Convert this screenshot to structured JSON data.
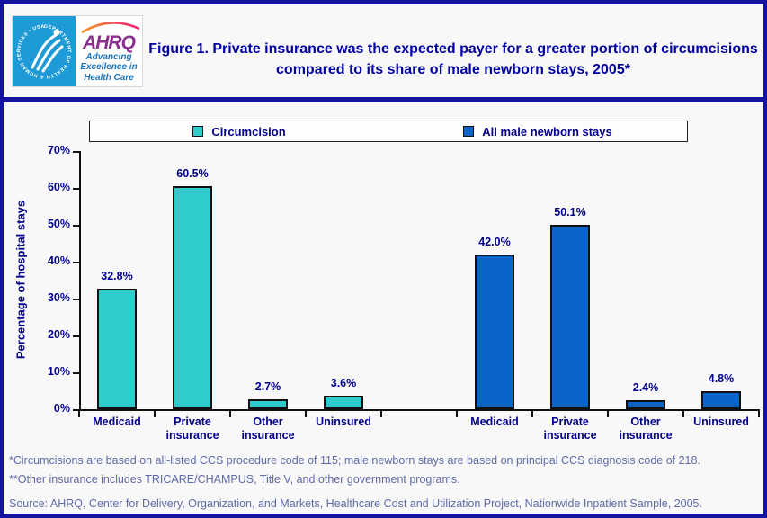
{
  "header": {
    "title": "Figure 1. Private insurance was the expected payer for a greater portion of circumcisions compared to its share of male newborn stays, 2005*",
    "logo": {
      "brand": "AHRQ",
      "tagline": "Advancing\nExcellence in\nHealth Care",
      "seal_text": "DEPARTMENT OF HEALTH & HUMAN SERVICES • USA"
    }
  },
  "chart_data": {
    "type": "bar",
    "title": "",
    "xlabel": "",
    "ylabel": "Percentage of hospital stays",
    "ylim": [
      0,
      70
    ],
    "yticks": [
      0,
      10,
      20,
      30,
      40,
      50,
      60,
      70
    ],
    "ytick_labels": [
      "0%",
      "10%",
      "20%",
      "30%",
      "40%",
      "50%",
      "60%",
      "70%"
    ],
    "categories": [
      "Medicaid",
      "Private insurance",
      "Other insurance",
      "Uninsured"
    ],
    "categories_display": [
      "Medicaid",
      "Private\ninsurance",
      "Other\ninsurance",
      "Uninsured"
    ],
    "series": [
      {
        "name": "Circumcision",
        "color": "#30CBCB",
        "values": [
          32.8,
          60.5,
          2.7,
          3.6
        ],
        "labels": [
          "32.8%",
          "60.5%",
          "2.7%",
          "3.6%"
        ]
      },
      {
        "name": "All male newborn stays",
        "color": "#0A64CA",
        "values": [
          42.0,
          50.1,
          2.4,
          4.8
        ],
        "labels": [
          "42.0%",
          "50.1%",
          "2.4%",
          "4.8%"
        ]
      }
    ],
    "legend_position": "top",
    "grid": false
  },
  "footnotes": [
    "*Circumcisions are based on all-listed CCS procedure code of 115; male newborn stays are based on principal CCS diagnosis code of 218.",
    "**Other insurance includes TRICARE/CHAMPUS, Title V, and other government programs."
  ],
  "source": "Source: AHRQ, Center for Delivery, Organization, and Markets, Healthcare Cost and Utilization Project, Nationwide Inpatient Sample, 2005.",
  "colors": {
    "accent_teal": "#30CBCB",
    "accent_blue": "#0A64CA",
    "navy_text": "#00008B",
    "frame_navy": "#1414A0",
    "footnote_slate": "#5F6AA8",
    "seal_blue": "#1E9AD6",
    "brand_purple": "#8B2F8F",
    "tagline_blue": "#1B75BC"
  }
}
